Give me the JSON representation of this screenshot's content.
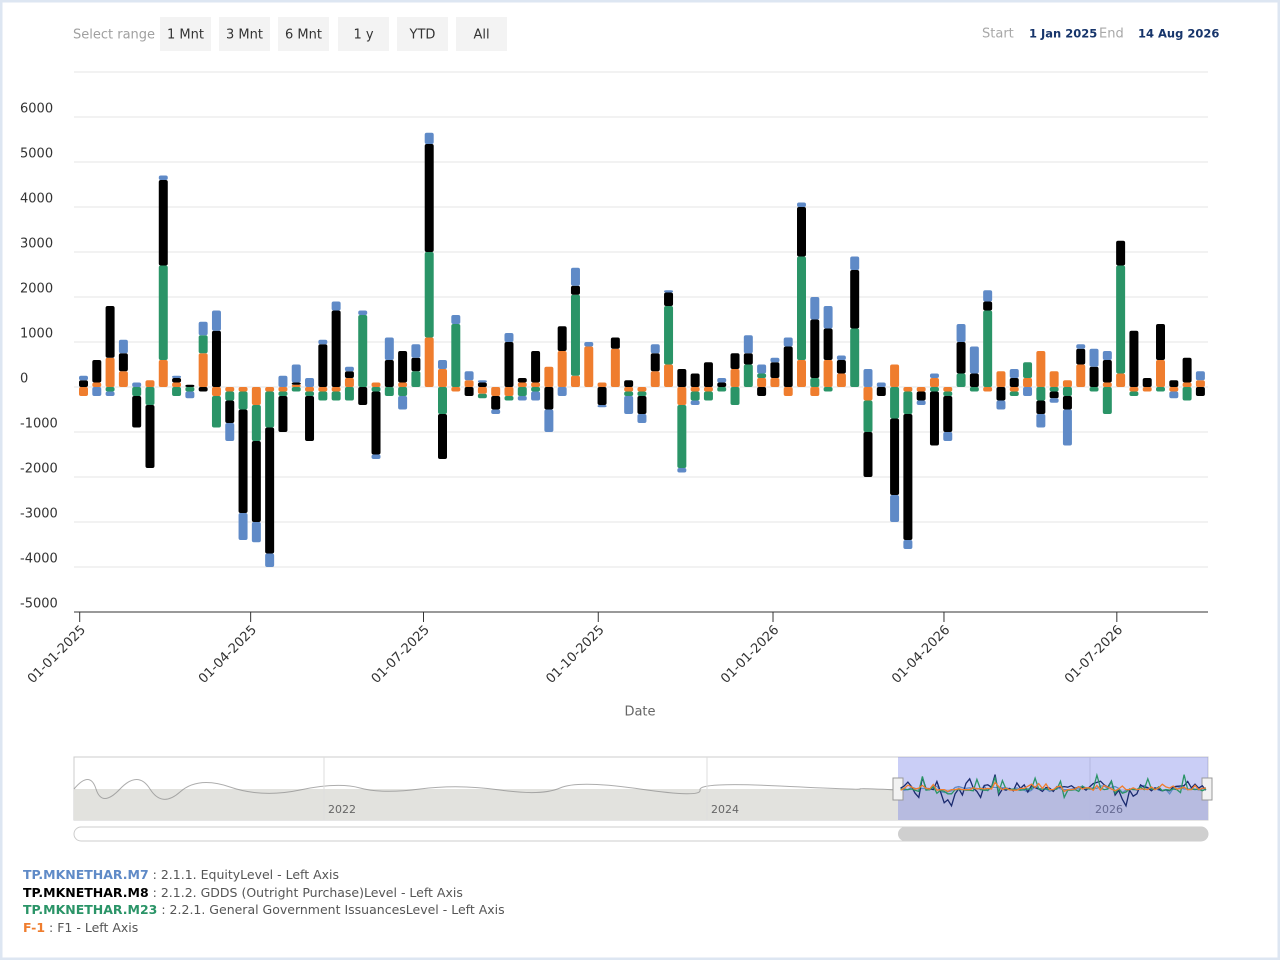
{
  "range_selector": {
    "label": "Select range",
    "buttons": [
      "1 Mnt",
      "3 Mnt",
      "6 Mnt",
      "1 y",
      "YTD",
      "All"
    ]
  },
  "date_range": {
    "start_label": "Start",
    "start": "1 Jan 2025",
    "end_label": "End",
    "end": "14 Aug 2026"
  },
  "navigator": {
    "labels": [
      "2022",
      "2024",
      "2026"
    ]
  },
  "chart_data": {
    "type": "bar",
    "stacking": "normal",
    "grid": true,
    "x_label": "Date",
    "x": [
      "2025-01-03",
      "2025-01-10",
      "2025-01-17",
      "2025-01-24",
      "2025-01-31",
      "2025-02-07",
      "2025-02-14",
      "2025-02-21",
      "2025-02-28",
      "2025-03-07",
      "2025-03-14",
      "2025-03-21",
      "2025-03-28",
      "2025-04-04",
      "2025-04-11",
      "2025-04-18",
      "2025-04-25",
      "2025-05-02",
      "2025-05-09",
      "2025-05-16",
      "2025-05-23",
      "2025-05-30",
      "2025-06-06",
      "2025-06-13",
      "2025-06-20",
      "2025-06-27",
      "2025-07-04",
      "2025-07-11",
      "2025-07-18",
      "2025-07-25",
      "2025-08-01",
      "2025-08-08",
      "2025-08-15",
      "2025-08-22",
      "2025-08-29",
      "2025-09-05",
      "2025-09-12",
      "2025-09-19",
      "2025-09-26",
      "2025-10-03",
      "2025-10-10",
      "2025-10-17",
      "2025-10-24",
      "2025-10-31",
      "2025-11-07",
      "2025-11-14",
      "2025-11-21",
      "2025-11-28",
      "2025-12-05",
      "2025-12-12",
      "2025-12-19",
      "2025-12-26",
      "2026-01-02",
      "2026-01-09",
      "2026-01-16",
      "2026-01-23",
      "2026-01-30",
      "2026-02-06",
      "2026-02-13",
      "2026-02-20",
      "2026-02-27",
      "2026-03-06",
      "2026-03-13",
      "2026-03-20",
      "2026-03-27",
      "2026-04-03",
      "2026-04-10",
      "2026-04-17",
      "2026-04-24",
      "2026-05-01",
      "2026-05-08",
      "2026-05-15",
      "2026-05-22",
      "2026-05-29",
      "2026-06-05",
      "2026-06-12",
      "2026-06-19",
      "2026-06-26",
      "2026-07-03",
      "2026-07-10",
      "2026-07-17",
      "2026-07-24",
      "2026-07-31",
      "2026-08-07",
      "2026-08-14"
    ],
    "xlim": [
      "2024-12-29",
      "2026-08-18"
    ],
    "xticks": [
      {
        "value": "2025-01-01",
        "label": "01-01-2025"
      },
      {
        "value": "2025-04-01",
        "label": "01-04-2025"
      },
      {
        "value": "2025-07-01",
        "label": "01-07-2025"
      },
      {
        "value": "2025-10-01",
        "label": "01-10-2025"
      },
      {
        "value": "2026-01-01",
        "label": "01-01-2026"
      },
      {
        "value": "2026-04-01",
        "label": "01-04-2026"
      },
      {
        "value": "2026-07-01",
        "label": "01-07-2026"
      }
    ],
    "ylim": [
      -5000,
      7000
    ],
    "yticks": [
      -5000,
      -4000,
      -3000,
      -2000,
      -1000,
      0,
      1000,
      2000,
      3000,
      4000,
      5000,
      6000
    ],
    "series": [
      {
        "name": "TP.MKNETHAR.M7",
        "description": ": 2.1.1. EquityLevel - Left Axis",
        "color": "#5f8ac7",
        "values": [
          100,
          -200,
          -100,
          300,
          100,
          0,
          100,
          50,
          -150,
          300,
          450,
          -400,
          -600,
          -450,
          -300,
          250,
          400,
          200,
          100,
          200,
          100,
          100,
          -100,
          500,
          -300,
          300,
          250,
          200,
          200,
          200,
          50,
          -100,
          200,
          -100,
          -200,
          -500,
          -200,
          400,
          100,
          -50,
          0,
          -400,
          -200,
          200,
          50,
          -100,
          -100,
          0,
          100,
          0,
          400,
          200,
          100,
          200,
          100,
          500,
          500,
          100,
          300,
          400,
          100,
          -600,
          -200,
          -100,
          100,
          -200,
          400,
          600,
          250,
          -200,
          200,
          -200,
          -300,
          -100,
          -800,
          100,
          400,
          200,
          0,
          0,
          0,
          0,
          -150,
          0,
          200
        ]
      },
      {
        "name": "TP.MKNETHAR.M8",
        "description": ": 2.1.2. GDDS (Outright Purchase)Level - Left Axis",
        "color": "#000000",
        "values": [
          150,
          500,
          1150,
          400,
          -700,
          -1400,
          1900,
          100,
          50,
          -100,
          1250,
          -500,
          -2300,
          -1800,
          -2800,
          -800,
          50,
          -1000,
          950,
          1700,
          150,
          -400,
          -1400,
          600,
          700,
          300,
          2400,
          -1000,
          0,
          -200,
          100,
          -300,
          1000,
          100,
          700,
          -500,
          550,
          200,
          0,
          -400,
          250,
          150,
          -400,
          400,
          300,
          400,
          300,
          550,
          100,
          350,
          250,
          -200,
          350,
          900,
          1100,
          1300,
          700,
          300,
          1300,
          -1000,
          -200,
          -1700,
          -2800,
          -200,
          -1200,
          -800,
          700,
          300,
          200,
          -300,
          200,
          0,
          -300,
          -150,
          -300,
          350,
          450,
          500,
          550,
          1250,
          200,
          800,
          150,
          550,
          -200
        ]
      },
      {
        "name": "TP.MKNETHAR.M23",
        "description": ": 2.2.1. General Government IssuancesLevel - Left Axis",
        "color": "#2a9467",
        "values": [
          0,
          0,
          -100,
          0,
          -200,
          -400,
          2100,
          -200,
          -100,
          400,
          -700,
          -200,
          -400,
          -800,
          -800,
          -100,
          -100,
          -100,
          -200,
          -200,
          -300,
          1600,
          -100,
          -200,
          -200,
          350,
          1900,
          -600,
          1400,
          0,
          -100,
          0,
          -100,
          -200,
          -100,
          0,
          0,
          1800,
          0,
          0,
          0,
          -100,
          -100,
          0,
          1300,
          -1400,
          -200,
          -200,
          -100,
          -400,
          500,
          100,
          0,
          0,
          2300,
          200,
          -100,
          0,
          1300,
          -700,
          0,
          -700,
          -500,
          0,
          -100,
          -100,
          300,
          -100,
          1700,
          0,
          -100,
          350,
          -300,
          -100,
          -200,
          0,
          -100,
          -600,
          2400,
          -100,
          0,
          -100,
          0,
          -300,
          0
        ]
      },
      {
        "name": "F-1",
        "description": ": F1 - Left Axis",
        "color": "#ef7d2e",
        "values": [
          -200,
          100,
          650,
          350,
          0,
          150,
          600,
          100,
          0,
          750,
          -200,
          -100,
          -100,
          -400,
          -100,
          -100,
          50,
          -100,
          -100,
          -100,
          200,
          0,
          100,
          0,
          100,
          0,
          1100,
          400,
          -100,
          150,
          -150,
          -200,
          -200,
          100,
          100,
          450,
          800,
          250,
          900,
          100,
          850,
          -100,
          -100,
          350,
          500,
          -400,
          -100,
          -100,
          0,
          400,
          0,
          200,
          200,
          -200,
          600,
          -200,
          600,
          300,
          0,
          -300,
          0,
          500,
          -100,
          -100,
          200,
          -100,
          0,
          0,
          -100,
          350,
          -100,
          200,
          800,
          350,
          150,
          500,
          0,
          100,
          300,
          -100,
          -100,
          600,
          -100,
          100,
          150
        ]
      }
    ]
  }
}
